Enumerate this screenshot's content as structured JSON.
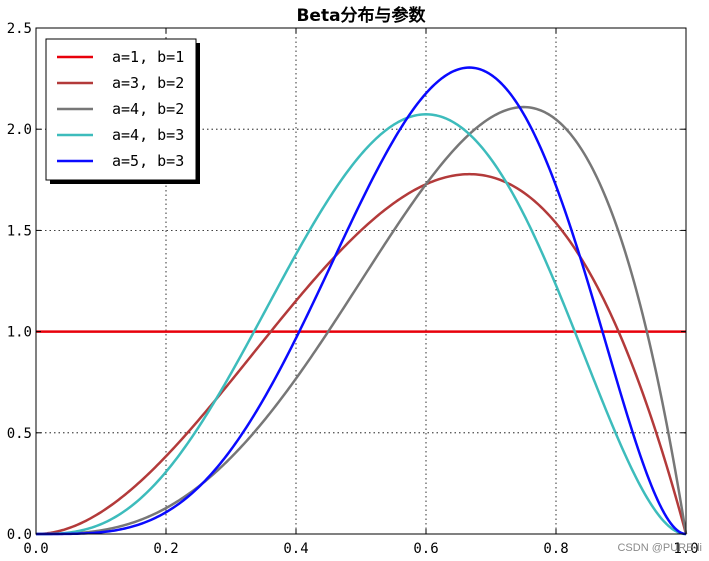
{
  "chart_data": {
    "type": "line",
    "title": "Beta分布与参数",
    "xlabel": "",
    "ylabel": "",
    "xlim": [
      0.0,
      1.0
    ],
    "ylim": [
      0.0,
      2.5
    ],
    "x_ticks": [
      0.0,
      0.2,
      0.4,
      0.6,
      0.8,
      1.0
    ],
    "x_tick_labels": [
      "0.0",
      "0.2",
      "0.4",
      "0.6",
      "0.8",
      "1.0"
    ],
    "y_ticks": [
      0.0,
      0.5,
      1.0,
      1.5,
      2.0,
      2.5
    ],
    "y_tick_labels": [
      "0.0",
      "0.5",
      "1.0",
      "1.5",
      "2.0",
      "2.5"
    ],
    "grid": true,
    "legend_position": "top-left",
    "series": [
      {
        "name": "a=1, b=1",
        "a": 1,
        "b": 1,
        "color": "#e8000b"
      },
      {
        "name": "a=3, b=2",
        "a": 3,
        "b": 2,
        "color": "#b33a3a"
      },
      {
        "name": "a=4, b=2",
        "a": 4,
        "b": 2,
        "color": "#777777"
      },
      {
        "name": "a=4, b=3",
        "a": 4,
        "b": 3,
        "color": "#3dbcbc"
      },
      {
        "name": "a=5, b=3",
        "a": 5,
        "b": 3,
        "color": "#0a0aff"
      }
    ]
  },
  "watermark": "CSDN @PURE-li"
}
